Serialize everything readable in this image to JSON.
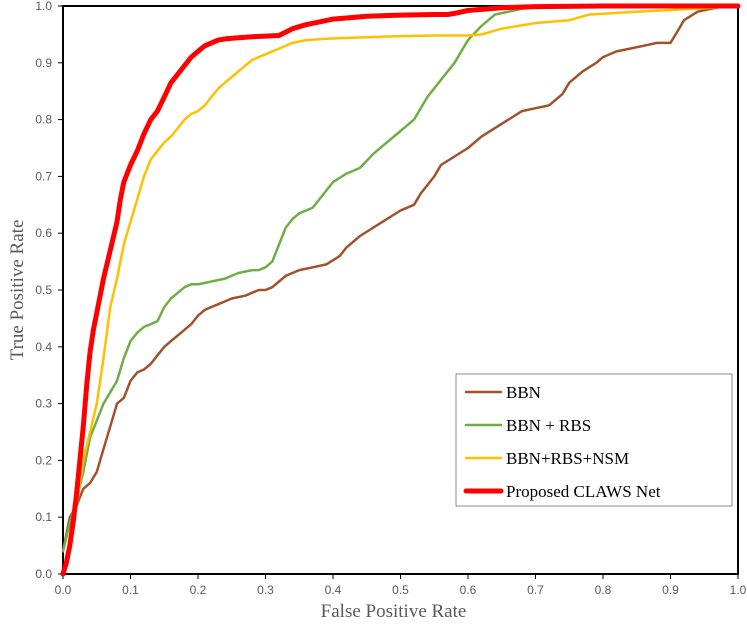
{
  "chart_data": {
    "type": "line",
    "title": "",
    "xlabel": "False Positive Rate",
    "ylabel": "True Positive Rate",
    "xlim": [
      0,
      1
    ],
    "ylim": [
      0,
      1
    ],
    "x_ticks": [
      "0.0",
      "0.1",
      "0.2",
      "0.3",
      "0.4",
      "0.5",
      "0.6",
      "0.7",
      "0.8",
      "0.9",
      "1.0"
    ],
    "y_ticks": [
      "0.0",
      "0.1",
      "0.2",
      "0.3",
      "0.4",
      "0.5",
      "0.6",
      "0.7",
      "0.8",
      "0.9",
      "1.0"
    ],
    "grid": false,
    "legend_position": "bottom-right",
    "series": [
      {
        "name": "BBN",
        "color": "#A0522D",
        "x": [
          0,
          0.01,
          0.02,
          0.03,
          0.04,
          0.05,
          0.06,
          0.07,
          0.08,
          0.09,
          0.1,
          0.11,
          0.12,
          0.13,
          0.14,
          0.15,
          0.16,
          0.17,
          0.18,
          0.19,
          0.2,
          0.21,
          0.22,
          0.23,
          0.24,
          0.25,
          0.27,
          0.28,
          0.29,
          0.3,
          0.31,
          0.32,
          0.33,
          0.35,
          0.37,
          0.39,
          0.41,
          0.42,
          0.44,
          0.46,
          0.48,
          0.5,
          0.52,
          0.53,
          0.55,
          0.56,
          0.58,
          0.6,
          0.62,
          0.64,
          0.66,
          0.68,
          0.7,
          0.72,
          0.74,
          0.75,
          0.77,
          0.79,
          0.8,
          0.82,
          0.84,
          0.86,
          0.88,
          0.9,
          0.91,
          0.92,
          0.94,
          0.96,
          0.98,
          1.0
        ],
        "y": [
          0.04,
          0.1,
          0.12,
          0.15,
          0.16,
          0.18,
          0.22,
          0.26,
          0.3,
          0.31,
          0.34,
          0.355,
          0.36,
          0.37,
          0.385,
          0.4,
          0.41,
          0.42,
          0.43,
          0.44,
          0.455,
          0.465,
          0.47,
          0.475,
          0.48,
          0.485,
          0.49,
          0.495,
          0.5,
          0.5,
          0.505,
          0.515,
          0.525,
          0.535,
          0.54,
          0.545,
          0.56,
          0.575,
          0.595,
          0.61,
          0.625,
          0.64,
          0.65,
          0.67,
          0.7,
          0.72,
          0.735,
          0.75,
          0.77,
          0.785,
          0.8,
          0.815,
          0.82,
          0.825,
          0.845,
          0.865,
          0.885,
          0.9,
          0.91,
          0.92,
          0.925,
          0.93,
          0.935,
          0.935,
          0.955,
          0.975,
          0.99,
          0.995,
          1.0,
          1.0
        ]
      },
      {
        "name": "BBN + RBS",
        "color": "#70AD47",
        "x": [
          0,
          0.01,
          0.02,
          0.03,
          0.04,
          0.05,
          0.06,
          0.07,
          0.08,
          0.09,
          0.1,
          0.11,
          0.12,
          0.13,
          0.14,
          0.15,
          0.16,
          0.17,
          0.18,
          0.19,
          0.2,
          0.22,
          0.24,
          0.26,
          0.28,
          0.29,
          0.3,
          0.31,
          0.32,
          0.33,
          0.34,
          0.35,
          0.37,
          0.38,
          0.4,
          0.42,
          0.44,
          0.46,
          0.48,
          0.5,
          0.52,
          0.54,
          0.56,
          0.58,
          0.6,
          0.62,
          0.64,
          0.66,
          0.68,
          0.7,
          0.75,
          0.8,
          0.9,
          1.0
        ],
        "y": [
          0.04,
          0.09,
          0.13,
          0.18,
          0.24,
          0.27,
          0.3,
          0.32,
          0.34,
          0.38,
          0.41,
          0.425,
          0.435,
          0.44,
          0.445,
          0.47,
          0.485,
          0.495,
          0.505,
          0.51,
          0.51,
          0.515,
          0.52,
          0.53,
          0.535,
          0.535,
          0.54,
          0.55,
          0.58,
          0.61,
          0.625,
          0.635,
          0.645,
          0.66,
          0.69,
          0.705,
          0.715,
          0.74,
          0.76,
          0.78,
          0.8,
          0.84,
          0.87,
          0.9,
          0.94,
          0.965,
          0.985,
          0.99,
          0.995,
          0.998,
          1.0,
          1.0,
          1.0,
          1.0
        ]
      },
      {
        "name": "BBN+RBS+NSM",
        "color": "#FFC000",
        "x": [
          0,
          0.01,
          0.02,
          0.03,
          0.04,
          0.05,
          0.06,
          0.07,
          0.08,
          0.09,
          0.1,
          0.11,
          0.12,
          0.13,
          0.14,
          0.15,
          0.16,
          0.17,
          0.18,
          0.19,
          0.2,
          0.21,
          0.22,
          0.23,
          0.24,
          0.25,
          0.26,
          0.27,
          0.28,
          0.29,
          0.3,
          0.32,
          0.34,
          0.36,
          0.4,
          0.45,
          0.5,
          0.55,
          0.6,
          0.62,
          0.65,
          0.7,
          0.75,
          0.78,
          0.85,
          0.9,
          0.95,
          1.0
        ],
        "y": [
          0.0,
          0.06,
          0.12,
          0.2,
          0.25,
          0.3,
          0.38,
          0.47,
          0.52,
          0.58,
          0.62,
          0.66,
          0.7,
          0.73,
          0.745,
          0.76,
          0.77,
          0.785,
          0.8,
          0.81,
          0.815,
          0.825,
          0.84,
          0.855,
          0.865,
          0.875,
          0.885,
          0.895,
          0.905,
          0.91,
          0.915,
          0.925,
          0.935,
          0.94,
          0.943,
          0.945,
          0.947,
          0.948,
          0.948,
          0.95,
          0.96,
          0.97,
          0.975,
          0.985,
          0.99,
          0.993,
          0.996,
          1.0
        ]
      },
      {
        "name": "Proposed CLAWS Net",
        "color": "#FF0000",
        "x": [
          0,
          0.005,
          0.01,
          0.015,
          0.02,
          0.025,
          0.03,
          0.035,
          0.04,
          0.045,
          0.05,
          0.06,
          0.07,
          0.08,
          0.085,
          0.09,
          0.1,
          0.11,
          0.12,
          0.13,
          0.14,
          0.15,
          0.16,
          0.17,
          0.18,
          0.19,
          0.2,
          0.21,
          0.22,
          0.23,
          0.24,
          0.26,
          0.28,
          0.3,
          0.32,
          0.34,
          0.36,
          0.38,
          0.4,
          0.45,
          0.5,
          0.55,
          0.57,
          0.58,
          0.6,
          0.65,
          0.7,
          0.8,
          0.9,
          1.0
        ],
        "y": [
          0.0,
          0.02,
          0.05,
          0.09,
          0.14,
          0.2,
          0.26,
          0.33,
          0.39,
          0.43,
          0.46,
          0.52,
          0.57,
          0.62,
          0.66,
          0.69,
          0.72,
          0.745,
          0.775,
          0.8,
          0.815,
          0.84,
          0.865,
          0.88,
          0.895,
          0.91,
          0.92,
          0.93,
          0.935,
          0.94,
          0.942,
          0.944,
          0.946,
          0.947,
          0.948,
          0.96,
          0.967,
          0.972,
          0.977,
          0.982,
          0.984,
          0.985,
          0.985,
          0.987,
          0.992,
          0.997,
          0.999,
          1.0,
          1.0,
          1.0
        ]
      }
    ]
  }
}
